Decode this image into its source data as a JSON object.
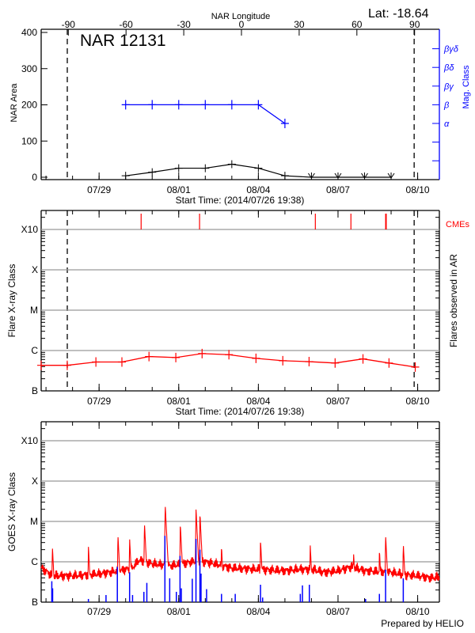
{
  "chart_data": [
    {
      "type": "line",
      "title": "NAR 12131",
      "annotation": "Lat: -18.64",
      "xlabel": "Start Time: (2014/07/26 19:38)",
      "x_range": [
        "2014-07-26T19:38",
        "2014-08-10T19:38"
      ],
      "x_tick_labels": [
        "07/29",
        "08/01",
        "08/04",
        "08/07",
        "08/10"
      ],
      "x_tick_dates": [
        "2014-07-29T00:00",
        "2014-08-01T00:00",
        "2014-08-04T00:00",
        "2014-08-07T00:00",
        "2014-08-10T00:00"
      ],
      "top_axis": {
        "label": "NAR Longitude",
        "ticks": [
          "-90",
          "-60",
          "-30",
          "0",
          "30",
          "60",
          "90"
        ]
      },
      "limb_lines": [
        "2014-07-27T19:15",
        "2014-08-09T20:50"
      ],
      "ylabel": "NAR Area",
      "ylim": [
        0,
        400
      ],
      "yticks": [
        "0",
        "100",
        "200",
        "300",
        "400"
      ],
      "area_series": {
        "color": "#000000",
        "x": [
          "2014-07-30T00:00",
          "2014-07-31T00:00",
          "2014-08-01T00:00",
          "2014-08-02T00:00",
          "2014-08-03T00:00",
          "2014-08-04T00:00",
          "2014-08-05T00:00",
          "2014-08-06T00:00",
          "2014-08-07T00:00",
          "2014-08-08T00:00",
          "2014-08-09T00:00"
        ],
        "values": [
          4,
          14,
          25,
          25,
          36,
          25,
          4,
          0,
          0,
          0,
          0
        ],
        "marker_below_zero": [
          false,
          false,
          false,
          false,
          false,
          false,
          false,
          true,
          true,
          true,
          true
        ]
      },
      "y2label": "Mag. Class",
      "y2ticks": [
        "α",
        "β",
        "βγ",
        "βδ",
        "βγδ"
      ],
      "mag_series": {
        "color": "#0000ff",
        "x": [
          "2014-07-30T00:00",
          "2014-07-31T00:00",
          "2014-08-01T00:00",
          "2014-08-02T00:00",
          "2014-08-03T00:00",
          "2014-08-04T00:00",
          "2014-08-05T00:00"
        ],
        "values": [
          "β",
          "β",
          "β",
          "β",
          "β",
          "β",
          "α"
        ]
      }
    },
    {
      "type": "line",
      "xlabel": "Start Time: (2014/07/26 19:38)",
      "x_range": [
        "2014-07-26T19:38",
        "2014-08-10T19:38"
      ],
      "x_tick_labels": [
        "07/29",
        "08/01",
        "08/04",
        "08/07",
        "08/10"
      ],
      "limb_lines": [
        "2014-07-27T19:15",
        "2014-08-09T20:50"
      ],
      "ylabel": "Flare X-ray Class",
      "y2label": "Flares observed in AR",
      "yscale": "log",
      "ylim": [
        1e-07,
        0.003
      ],
      "yticks": [
        {
          "label": "B",
          "value": 1e-07
        },
        {
          "label": "C",
          "value": 1e-06
        },
        {
          "label": "M",
          "value": 1e-05
        },
        {
          "label": "X",
          "value": 0.0001
        },
        {
          "label": "X10",
          "value": 0.001
        }
      ],
      "grid": true,
      "flare_series": {
        "color": "#ff0000",
        "x": [
          "2014-07-26T19:38",
          "2014-07-27T19:12",
          "2014-07-28T21:07",
          "2014-07-29T20:38",
          "2014-07-30T21:07",
          "2014-07-31T21:22",
          "2014-08-01T21:07",
          "2014-08-02T21:22",
          "2014-08-03T21:50",
          "2014-08-04T22:05",
          "2014-08-05T21:50",
          "2014-08-06T21:22",
          "2014-08-07T22:34",
          "2014-08-08T22:05",
          "2014-08-09T21:50"
        ],
        "values": [
          4.3e-07,
          4.3e-07,
          5.2e-07,
          5.2e-07,
          7.1e-07,
          6.7e-07,
          8.4e-07,
          7.9e-07,
          6.4e-07,
          5.6e-07,
          5.3e-07,
          4.9e-07,
          6.2e-07,
          4.9e-07,
          3.9e-07
        ]
      },
      "cmes": {
        "label": "CMEs",
        "color": "#ff0000",
        "times": [
          "2014-07-30T14:00",
          "2014-08-01T18:50",
          "2014-08-06T03:30",
          "2014-08-07T11:40",
          "2014-08-08T19:20"
        ]
      }
    },
    {
      "type": "line",
      "x_range": [
        "2014-07-26T19:38",
        "2014-08-10T19:38"
      ],
      "x_tick_labels": [
        "07/29",
        "08/01",
        "08/04",
        "08/07",
        "08/10"
      ],
      "ylabel": "GOES X-ray Class",
      "yscale": "log",
      "ylim": [
        1e-07,
        0.003
      ],
      "yticks": [
        {
          "label": "B",
          "value": 1e-07
        },
        {
          "label": "C",
          "value": 1e-06
        },
        {
          "label": "M",
          "value": 1e-05
        },
        {
          "label": "X",
          "value": 0.0001
        },
        {
          "label": "X10",
          "value": 0.001
        }
      ],
      "grid": true,
      "long_channel": {
        "color": "#ff0000",
        "background": [
          [
            "2014-07-26T19:38",
            7e-07
          ],
          [
            "2014-07-27T06:00",
            4.5e-07
          ],
          [
            "2014-07-28T00:00",
            4.5e-07
          ],
          [
            "2014-07-29T00:00",
            5e-07
          ],
          [
            "2014-07-29T18:00",
            6e-07
          ],
          [
            "2014-07-30T06:00",
            7e-07
          ],
          [
            "2014-07-30T12:00",
            1.1e-06
          ],
          [
            "2014-07-31T00:00",
            9e-07
          ],
          [
            "2014-07-31T18:00",
            8e-07
          ],
          [
            "2014-08-01T12:00",
            1e-06
          ],
          [
            "2014-08-02T00:00",
            1e-06
          ],
          [
            "2014-08-02T12:00",
            8.5e-07
          ],
          [
            "2014-08-03T00:00",
            7e-07
          ],
          [
            "2014-08-04T00:00",
            6.5e-07
          ],
          [
            "2014-08-05T00:00",
            6e-07
          ],
          [
            "2014-08-05T12:00",
            6.5e-07
          ],
          [
            "2014-08-06T00:00",
            6.5e-07
          ],
          [
            "2014-08-06T12:00",
            5.5e-07
          ],
          [
            "2014-08-07T00:00",
            6e-07
          ],
          [
            "2014-08-07T12:00",
            7.5e-07
          ],
          [
            "2014-08-08T00:00",
            6e-07
          ],
          [
            "2014-08-09T00:00",
            5.5e-07
          ],
          [
            "2014-08-09T12:00",
            4.8e-07
          ],
          [
            "2014-08-10T00:00",
            4.5e-07
          ],
          [
            "2014-08-10T12:00",
            4e-07
          ],
          [
            "2014-08-10T19:38",
            4.2e-07
          ]
        ],
        "peaks": [
          [
            "2014-07-27T05:45",
            2.5e-06
          ],
          [
            "2014-07-28T14:20",
            2.5e-06
          ],
          [
            "2014-07-29T17:00",
            4.8e-06
          ],
          [
            "2014-07-30T03:35",
            3.8e-06
          ],
          [
            "2014-07-30T17:00",
            9.4e-06
          ],
          [
            "2014-07-31T11:45",
            2.7e-05
          ],
          [
            "2014-08-01T01:25",
            9e-06
          ],
          [
            "2014-08-01T15:35",
            2.1e-05
          ],
          [
            "2014-08-01T19:10",
            1.6e-05
          ],
          [
            "2014-08-02T14:40",
            2.5e-06
          ],
          [
            "2014-08-04T01:55",
            3.6e-06
          ],
          [
            "2014-08-05T22:50",
            2.7e-06
          ],
          [
            "2014-08-07T14:00",
            1.8e-06
          ],
          [
            "2014-08-08T13:25",
            2e-06
          ],
          [
            "2014-08-08T19:00",
            4.8e-06
          ],
          [
            "2014-08-09T11:00",
            2.9e-06
          ]
        ]
      },
      "short_channel": {
        "color": "#0000ff",
        "bars": [
          [
            "2014-07-27T05:15",
            3.3e-07
          ],
          [
            "2014-07-27T06:00",
            2.2e-07
          ],
          [
            "2014-07-28T14:20",
            1.2e-07
          ],
          [
            "2014-07-29T06:15",
            1.5e-07
          ],
          [
            "2014-07-29T16:30",
            7.5e-07
          ],
          [
            "2014-07-30T03:35",
            5.5e-07
          ],
          [
            "2014-07-30T06:15",
            1.5e-07
          ],
          [
            "2014-07-30T16:30",
            1.8e-07
          ],
          [
            "2014-07-30T19:10",
            3e-07
          ],
          [
            "2014-07-31T11:30",
            4.4e-06
          ],
          [
            "2014-07-31T15:50",
            3.9e-07
          ],
          [
            "2014-07-31T21:50",
            1.8e-07
          ],
          [
            "2014-08-01T01:10",
            1.4e-06
          ],
          [
            "2014-08-01T02:20",
            2.2e-07
          ],
          [
            "2014-08-01T12:15",
            3.8e-07
          ],
          [
            "2014-08-01T15:35",
            3.7e-06
          ],
          [
            "2014-08-01T19:10",
            2e-06
          ],
          [
            "2014-08-01T20:10",
            5.1e-07
          ],
          [
            "2014-08-02T01:10",
            2.1e-07
          ],
          [
            "2014-08-02T14:40",
            1.6e-07
          ],
          [
            "2014-08-03T03:05",
            1.6e-07
          ],
          [
            "2014-08-04T01:55",
            2.7e-07
          ],
          [
            "2014-08-04T03:50",
            1.3e-07
          ],
          [
            "2014-08-05T13:55",
            1.6e-07
          ],
          [
            "2014-08-05T15:50",
            2.6e-07
          ],
          [
            "2014-08-05T22:05",
            2.7e-07
          ],
          [
            "2014-08-08T00:55",
            1.2e-07
          ],
          [
            "2014-08-08T13:25",
            1.6e-07
          ],
          [
            "2014-08-08T19:00",
            6.4e-07
          ],
          [
            "2014-08-09T11:00",
            3.9e-07
          ]
        ]
      },
      "footer": "Prepared by HELIO"
    }
  ]
}
